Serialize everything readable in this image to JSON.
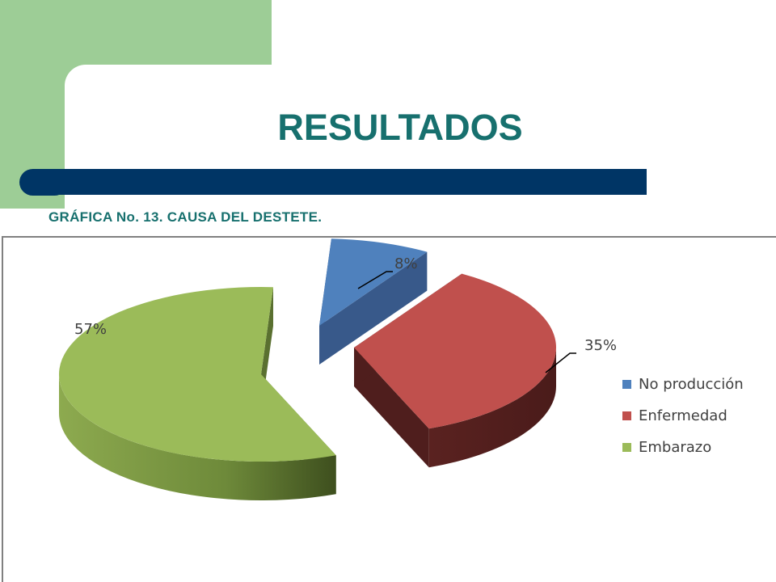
{
  "slide": {
    "title": "RESULTADOS",
    "subtitle": "GRÁFICA No. 13. CAUSA DEL DESTETE."
  },
  "colors": {
    "title_text": "#17706e",
    "header_bar": "#003565",
    "deco_green": "#9dcd96"
  },
  "chart_data": {
    "type": "pie",
    "style": "3d-exploded",
    "series": [
      {
        "label": "No producción",
        "value": 8,
        "display": "8%",
        "color_top": "#4f81bd",
        "color_side": "#38598a"
      },
      {
        "label": "Enfermedad",
        "value": 35,
        "display": "35%",
        "color_top": "#c0504d",
        "color_side": "#4f1e1d"
      },
      {
        "label": "Embarazo",
        "value": 57,
        "display": "57%",
        "color_top": "#9bbb59",
        "color_side": "#5a7030"
      }
    ],
    "legend_placement": "right",
    "data_labels": "percent-outside-with-leader"
  }
}
